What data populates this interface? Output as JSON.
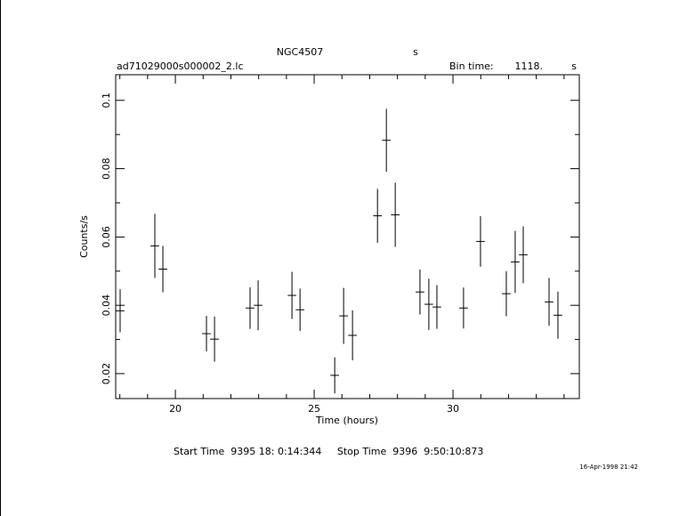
{
  "chart_data": {
    "type": "errorbar",
    "title": "NGC4507",
    "title_unit": "s",
    "file_name": "ad71029000s000002_2.lc",
    "bin_time_label": "Bin time:",
    "bin_time": "1118.",
    "bin_time_unit": "s",
    "x_label": "Time (hours)",
    "y_label": "Counts/s",
    "footer": "Start Time  9395 18: 0:14:344     Stop Time  9396  9:50:10:873",
    "date": "16-Apr-1998 21:42",
    "xlim": [
      17.85,
      34.55
    ],
    "ylim": [
      0.0127,
      0.1075
    ],
    "xticks": [
      20,
      25,
      30
    ],
    "yticks": [
      0.02,
      0.04,
      0.06,
      0.08,
      0.1
    ],
    "xminorticks": [
      18,
      19,
      21,
      22,
      23,
      24,
      26,
      27,
      28,
      29,
      31,
      32,
      33,
      34
    ],
    "yminorticks": [
      0.03,
      0.05,
      0.07,
      0.09
    ],
    "color": "#000000",
    "x_halfwidth": 0.155,
    "x": [
      18.01,
      19.26,
      19.55,
      21.12,
      21.41,
      22.69,
      22.98,
      24.2,
      24.49,
      25.74,
      26.06,
      26.38,
      27.28,
      27.6,
      27.92,
      28.81,
      29.13,
      29.42,
      30.38,
      30.99,
      31.92,
      32.24,
      32.53,
      33.46,
      33.78
    ],
    "values": [
      0.0384,
      0.0574,
      0.0506,
      0.0317,
      0.0301,
      0.0392,
      0.04,
      0.0429,
      0.0387,
      0.0195,
      0.0369,
      0.0312,
      0.0662,
      0.0883,
      0.0665,
      0.0439,
      0.0403,
      0.0395,
      0.0392,
      0.0587,
      0.0434,
      0.0527,
      0.0548,
      0.041,
      0.0371
    ],
    "errors": [
      0.0063,
      0.0094,
      0.0068,
      0.0052,
      0.0066,
      0.0061,
      0.0073,
      0.0069,
      0.0062,
      0.0053,
      0.0082,
      0.0073,
      0.0079,
      0.0092,
      0.0094,
      0.0066,
      0.0075,
      0.0064,
      0.006,
      0.0074,
      0.0066,
      0.0091,
      0.0083,
      0.007,
      0.0069
    ]
  }
}
